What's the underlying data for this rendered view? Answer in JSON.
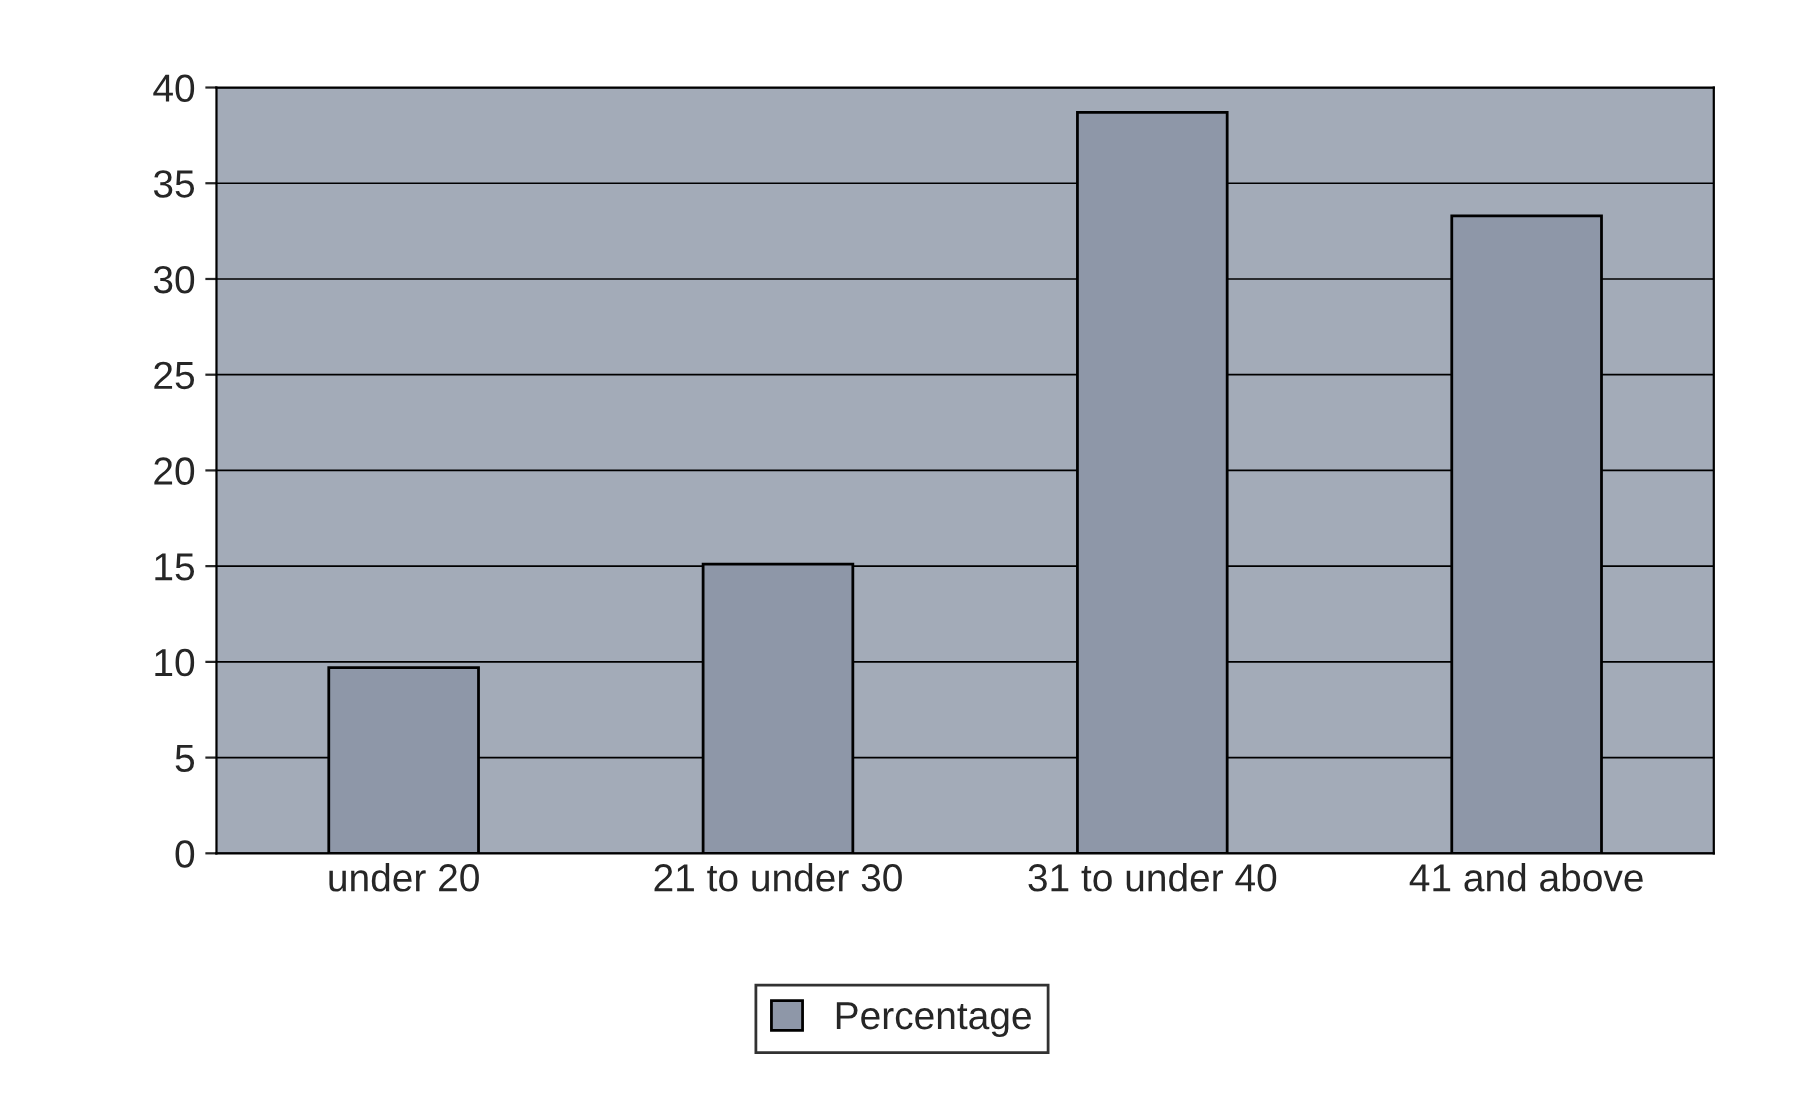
{
  "chart_data": {
    "type": "bar",
    "categories": [
      "under 20",
      "21 to under 30",
      "31 to under 40",
      "41 and above"
    ],
    "series": [
      {
        "name": "Percentage",
        "color": "#8e97a8",
        "values": [
          9.7,
          15.1,
          38.7,
          33.3
        ]
      }
    ],
    "ylim": [
      0,
      40
    ],
    "yticks": [
      0,
      5,
      10,
      15,
      20,
      25,
      30,
      35,
      40
    ],
    "grid": "y",
    "legend": "bottom"
  }
}
